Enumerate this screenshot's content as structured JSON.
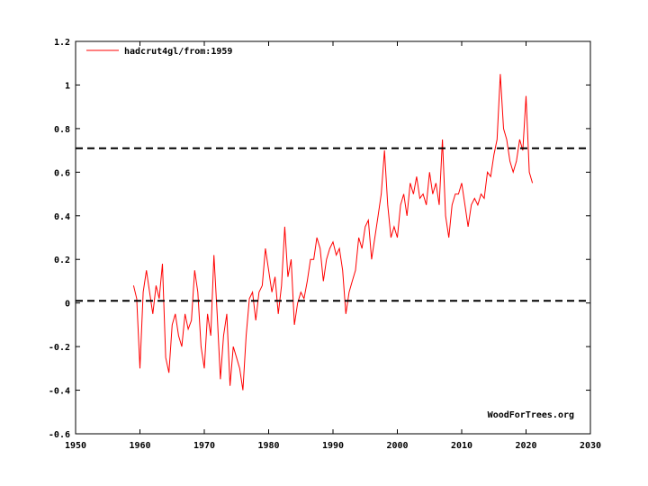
{
  "chart_data": {
    "type": "line",
    "title": "",
    "xlabel": "",
    "ylabel": "",
    "xlim": [
      1950,
      2030
    ],
    "ylim": [
      -0.6,
      1.2
    ],
    "x_ticks": [
      1950,
      1960,
      1970,
      1980,
      1990,
      2000,
      2010,
      2020,
      2030
    ],
    "x_tick_labels": [
      "1950",
      "1960",
      "1970",
      "1980",
      "1990",
      "2000",
      "2010",
      "2020",
      "2030"
    ],
    "y_ticks": [
      -0.6,
      -0.4,
      -0.2,
      0,
      0.2,
      0.4,
      0.6,
      0.8,
      1.0,
      1.2
    ],
    "y_tick_labels": [
      "-0.6",
      "-0.4",
      "-0.2",
      "0",
      "0.2",
      "0.4",
      "0.6",
      "0.8",
      "1",
      "1.2"
    ],
    "grid": false,
    "legend_position": "top-left",
    "series": [
      {
        "name": "hadcrut4gl/from:1959",
        "color": "#ff0000",
        "style": "solid",
        "x": [
          1959.0,
          1959.5,
          1960.0,
          1960.5,
          1961.0,
          1961.5,
          1962.0,
          1962.5,
          1963.0,
          1963.5,
          1964.0,
          1964.5,
          1965.0,
          1965.5,
          1966.0,
          1966.5,
          1967.0,
          1967.5,
          1968.0,
          1968.5,
          1969.0,
          1969.5,
          1970.0,
          1970.5,
          1971.0,
          1971.5,
          1972.0,
          1972.5,
          1973.0,
          1973.5,
          1974.0,
          1974.5,
          1975.0,
          1975.5,
          1976.0,
          1976.5,
          1977.0,
          1977.5,
          1978.0,
          1978.5,
          1979.0,
          1979.5,
          1980.0,
          1980.5,
          1981.0,
          1981.5,
          1982.0,
          1982.5,
          1983.0,
          1983.5,
          1984.0,
          1984.5,
          1985.0,
          1985.5,
          1986.0,
          1986.5,
          1987.0,
          1987.5,
          1988.0,
          1988.5,
          1989.0,
          1989.5,
          1990.0,
          1990.5,
          1991.0,
          1991.5,
          1992.0,
          1992.5,
          1993.0,
          1993.5,
          1994.0,
          1994.5,
          1995.0,
          1995.5,
          1996.0,
          1996.5,
          1997.0,
          1997.5,
          1998.0,
          1998.5,
          1999.0,
          1999.5,
          2000.0,
          2000.5,
          2001.0,
          2001.5,
          2002.0,
          2002.5,
          2003.0,
          2003.5,
          2004.0,
          2004.5,
          2005.0,
          2005.5,
          2006.0,
          2006.5,
          2007.0,
          2007.5,
          2008.0,
          2008.5,
          2009.0,
          2009.5,
          2010.0,
          2010.5,
          2011.0,
          2011.5,
          2012.0,
          2012.5,
          2013.0,
          2013.5,
          2014.0,
          2014.5,
          2015.0,
          2015.5,
          2016.0,
          2016.5,
          2017.0,
          2017.5,
          2018.0,
          2018.5,
          2019.0,
          2019.5,
          2020.0,
          2020.5,
          2021.0
        ],
        "y": [
          0.08,
          0.02,
          -0.3,
          0.05,
          0.15,
          0.05,
          -0.05,
          0.08,
          0.02,
          0.18,
          -0.25,
          -0.32,
          -0.1,
          -0.05,
          -0.15,
          -0.2,
          -0.05,
          -0.12,
          -0.08,
          0.15,
          0.05,
          -0.2,
          -0.3,
          -0.05,
          -0.15,
          0.22,
          -0.05,
          -0.35,
          -0.15,
          -0.05,
          -0.38,
          -0.2,
          -0.25,
          -0.3,
          -0.4,
          -0.15,
          0.02,
          0.05,
          -0.08,
          0.05,
          0.08,
          0.25,
          0.15,
          0.05,
          0.12,
          -0.05,
          0.08,
          0.35,
          0.12,
          0.2,
          -0.1,
          0.0,
          0.05,
          0.02,
          0.1,
          0.2,
          0.2,
          0.3,
          0.25,
          0.1,
          0.2,
          0.25,
          0.28,
          0.22,
          0.25,
          0.15,
          -0.05,
          0.05,
          0.1,
          0.15,
          0.3,
          0.25,
          0.35,
          0.38,
          0.2,
          0.3,
          0.4,
          0.5,
          0.7,
          0.45,
          0.3,
          0.35,
          0.3,
          0.45,
          0.5,
          0.4,
          0.55,
          0.5,
          0.58,
          0.48,
          0.5,
          0.45,
          0.6,
          0.5,
          0.55,
          0.45,
          0.75,
          0.4,
          0.3,
          0.45,
          0.5,
          0.5,
          0.55,
          0.45,
          0.35,
          0.45,
          0.48,
          0.45,
          0.5,
          0.48,
          0.6,
          0.58,
          0.68,
          0.75,
          1.05,
          0.8,
          0.75,
          0.65,
          0.6,
          0.65,
          0.75,
          0.7,
          0.95,
          0.6,
          0.55
        ],
        "points_note": ""
      },
      {
        "name": "",
        "color": "#000000",
        "style": "dashed",
        "x": [
          1950,
          2030
        ],
        "y": [
          0.71,
          0.71
        ]
      },
      {
        "name": "",
        "color": "#000000",
        "style": "dashed",
        "x": [
          1950,
          2030
        ],
        "y": [
          0.01,
          0.01
        ]
      }
    ],
    "annotations": [
      "WoodForTrees.org"
    ]
  }
}
